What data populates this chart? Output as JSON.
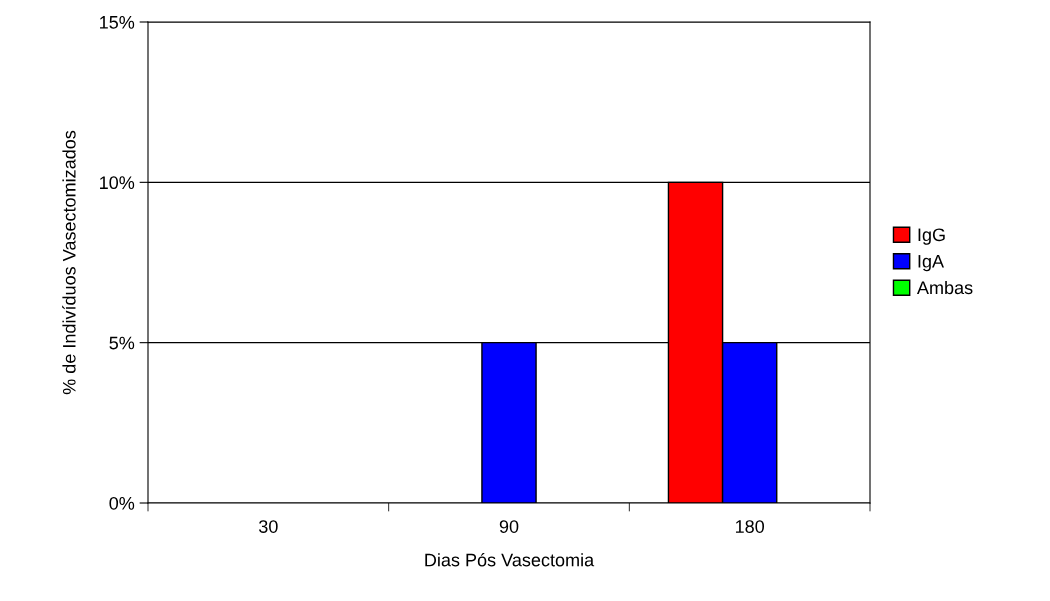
{
  "chart_data": {
    "type": "bar",
    "xlabel": "Dias Pós Vasectomia",
    "ylabel": "% de Indivíduos Vasectomizados",
    "categories": [
      "30",
      "90",
      "180"
    ],
    "series": [
      {
        "name": "IgG",
        "color": "#ff0000",
        "values": [
          0,
          0,
          10
        ]
      },
      {
        "name": "IgA",
        "color": "#0000ff",
        "values": [
          0,
          5,
          5
        ]
      },
      {
        "name": "Ambas",
        "color": "#00ff00",
        "values": [
          0,
          0,
          0
        ]
      }
    ],
    "ylim": [
      0,
      15
    ],
    "yticks": [
      {
        "value": 0,
        "label": "0%"
      },
      {
        "value": 5,
        "label": "5%"
      },
      {
        "value": 10,
        "label": "10%"
      },
      {
        "value": 15,
        "label": "15%"
      }
    ],
    "grid": "y",
    "legend": "right"
  }
}
